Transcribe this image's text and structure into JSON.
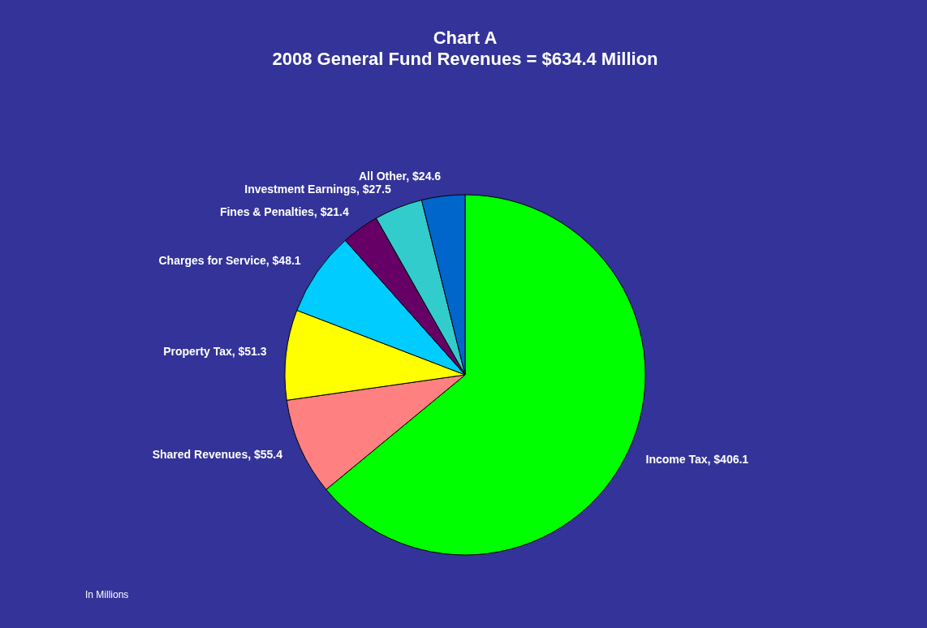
{
  "chart_data": {
    "type": "pie",
    "title": "Chart A",
    "subtitle": "2008 General Fund Revenues = $634.4 Million",
    "categories": [
      "Income Tax",
      "Shared Revenues",
      "Property Tax",
      "Charges for Service",
      "Fines & Penalties",
      "Investment Earnings",
      "All Other"
    ],
    "values": [
      406.1,
      55.4,
      51.3,
      48.1,
      21.4,
      27.5,
      24.6
    ],
    "value_labels": [
      "$406.1",
      "$55.4",
      "$51.3",
      "$48.1",
      "$21.4",
      "$27.5",
      "$24.6"
    ],
    "colors": [
      "#00ff00",
      "#ff8080",
      "#ffff00",
      "#00ccff",
      "#660066",
      "#33cccc",
      "#0066cc"
    ],
    "annotations": [
      "In Millions"
    ],
    "legend": false
  }
}
